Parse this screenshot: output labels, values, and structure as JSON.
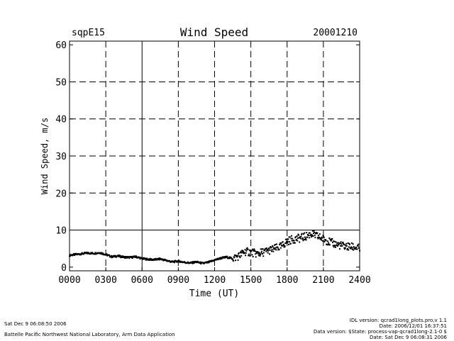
{
  "header": {
    "station": "sqpE15",
    "date": "20001210"
  },
  "chart_data": {
    "type": "scatter",
    "title": "Wind Speed",
    "xlabel": "Time (UT)",
    "ylabel": "Wind Speed, m/s",
    "xlim": [
      0,
      24
    ],
    "ylim": [
      -1,
      61
    ],
    "x_ticks": [
      "0000",
      "0300",
      "0600",
      "0900",
      "1200",
      "1500",
      "1800",
      "2100",
      "2400"
    ],
    "y_ticks": [
      "0",
      "10",
      "20",
      "30",
      "40",
      "50",
      "60"
    ],
    "grid": "dashed",
    "reference_line_y": 10,
    "series": [
      {
        "values_note": "hourly-ish samples read off the plot",
        "x": [
          0.0,
          0.5,
          1.0,
          1.5,
          2.0,
          2.5,
          3.0,
          3.5,
          4.0,
          4.5,
          5.0,
          5.5,
          6.0,
          6.5,
          7.0,
          7.5,
          8.0,
          8.5,
          9.0,
          9.5,
          10.0,
          10.5,
          11.0,
          11.5,
          12.0,
          12.5,
          13.0,
          13.5,
          14.0,
          14.5,
          15.0,
          15.5,
          16.0,
          16.5,
          17.0,
          17.5,
          18.0,
          18.5,
          19.0,
          19.5,
          20.0,
          20.5,
          21.0,
          21.5,
          22.0,
          22.5,
          23.0,
          23.5,
          24.0
        ],
        "y": [
          3.2,
          3.4,
          3.6,
          3.8,
          3.7,
          3.9,
          3.4,
          2.8,
          3.0,
          2.7,
          2.6,
          2.8,
          2.3,
          2.1,
          2.0,
          2.2,
          1.8,
          1.4,
          1.6,
          1.3,
          1.1,
          1.4,
          1.0,
          1.3,
          1.9,
          2.4,
          2.7,
          2.3,
          3.0,
          4.2,
          4.0,
          3.6,
          4.0,
          4.5,
          5.0,
          5.5,
          7.0,
          7.5,
          7.8,
          8.2,
          9.0,
          8.3,
          7.6,
          6.8,
          6.2,
          5.8,
          5.5,
          5.4,
          5.0
        ]
      }
    ]
  },
  "footer": {
    "left_line1": "Sat Dec  9 06:08:50 2006",
    "left_line2": "Battelle Pacific Northwest National Laboratory, Arm Data Application",
    "right_line1": "IDL version: qcrad1long_plots.pro,v 1.1",
    "right_line2": "Date: 2006/12/01 16:37:51",
    "right_line3": "Data version: $State: process-vap-qcrad1long-2.1-0 $",
    "right_line4": "Date: Sat Dec  9 06:08:31 2006"
  }
}
